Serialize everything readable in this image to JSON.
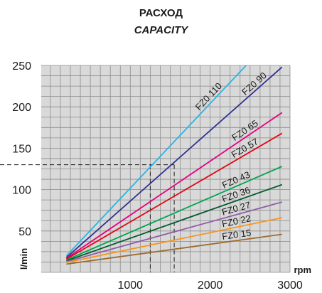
{
  "chart_data": {
    "type": "line",
    "title": "РАСХОД",
    "subtitle": "CAPACITY",
    "xlabel": "rpm",
    "ylabel": "l/min",
    "xlim": [
      0,
      3000
    ],
    "ylim": [
      0,
      250
    ],
    "xticks": [
      1000,
      2000,
      3000
    ],
    "yticks": [
      50,
      100,
      150,
      200,
      250
    ],
    "grid": true,
    "series": [
      {
        "name": "FZ0 110",
        "color": "#27b6e6",
        "points": [
          [
            200,
            20
          ],
          [
            2450,
            250
          ]
        ]
      },
      {
        "name": "FZ0 90",
        "color": "#2e3192",
        "points": [
          [
            200,
            18
          ],
          [
            2900,
            248
          ]
        ]
      },
      {
        "name": "FZ0 65",
        "color": "#e6007e",
        "points": [
          [
            200,
            17
          ],
          [
            2900,
            193
          ]
        ]
      },
      {
        "name": "FZ0 57",
        "color": "#e30613",
        "points": [
          [
            200,
            16
          ],
          [
            2900,
            168
          ]
        ]
      },
      {
        "name": "FZ0 43",
        "color": "#00a651",
        "points": [
          [
            200,
            15
          ],
          [
            2900,
            128
          ]
        ]
      },
      {
        "name": "FZ0 36",
        "color": "#005c2e",
        "points": [
          [
            200,
            14
          ],
          [
            2900,
            106
          ]
        ]
      },
      {
        "name": "FZ0 27",
        "color": "#8e5ba6",
        "points": [
          [
            200,
            13
          ],
          [
            2900,
            85
          ]
        ]
      },
      {
        "name": "FZ0 22",
        "color": "#f7941d",
        "points": [
          [
            200,
            12
          ],
          [
            2900,
            66
          ]
        ]
      },
      {
        "name": "FZ0 15",
        "color": "#9c6b30",
        "points": [
          [
            200,
            10
          ],
          [
            2900,
            46
          ]
        ]
      }
    ],
    "reference": {
      "y": 130,
      "x": [
        1250,
        1550
      ]
    }
  }
}
